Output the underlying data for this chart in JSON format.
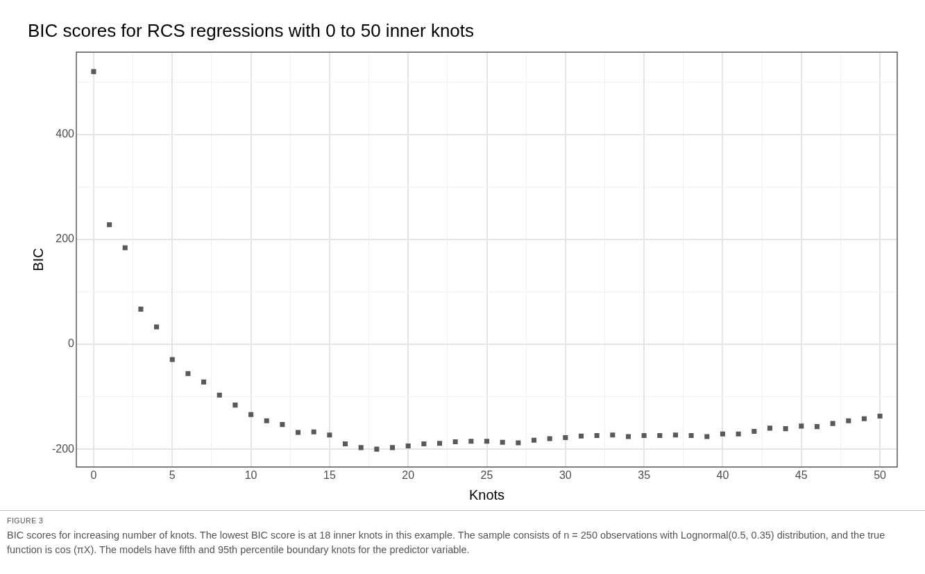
{
  "chart_data": {
    "type": "scatter",
    "title": "BIC scores for RCS regressions with 0 to 50 inner knots",
    "xlabel": "Knots",
    "ylabel": "BIC",
    "x": [
      0,
      1,
      2,
      3,
      4,
      5,
      6,
      7,
      8,
      9,
      10,
      11,
      12,
      13,
      14,
      15,
      16,
      17,
      18,
      19,
      20,
      21,
      22,
      23,
      24,
      25,
      26,
      27,
      28,
      29,
      30,
      31,
      32,
      33,
      34,
      35,
      36,
      37,
      38,
      39,
      40,
      41,
      42,
      43,
      44,
      45,
      46,
      47,
      48,
      49,
      50
    ],
    "series": [
      {
        "color": "#595959",
        "values": [
          520,
          228,
          184,
          67,
          33,
          -29,
          -56,
          -72,
          -97,
          -116,
          -134,
          -146,
          -153,
          -168,
          -167,
          -173,
          -190,
          -197,
          -200,
          -197,
          -194,
          -190,
          -189,
          -186,
          -185,
          -185,
          -187,
          -188,
          -183,
          -180,
          -178,
          -175,
          -174,
          -173,
          -176,
          -174,
          -174,
          -173,
          -174,
          -176,
          -171,
          -171,
          -166,
          -160,
          -161,
          -156,
          -157,
          -151,
          -146,
          -142,
          -137
        ]
      }
    ],
    "xlim": [
      -1.1,
      51.1
    ],
    "xticks": [
      0,
      {
        "value": 2.5,
        "label": null
      },
      5,
      {
        "value": 7.5,
        "label": null
      },
      10,
      {
        "value": 12.5,
        "label": null
      },
      15,
      {
        "value": 17.5,
        "label": null
      },
      20,
      {
        "value": 22.5,
        "label": null
      },
      25,
      {
        "value": 27.5,
        "label": null
      },
      30,
      {
        "value": 32.5,
        "label": null
      },
      35,
      {
        "value": 37.5,
        "label": null
      },
      40,
      {
        "value": 42.5,
        "label": null
      },
      45,
      {
        "value": 47.5,
        "label": null
      },
      50
    ],
    "ylim": [
      -234,
      557
    ],
    "yticks": [
      -200,
      {
        "value": -100,
        "label": null
      },
      0,
      {
        "value": 100,
        "label": null
      },
      200,
      {
        "value": 300,
        "label": null
      },
      400,
      {
        "value": 500,
        "label": null
      }
    ],
    "grid": true,
    "marker": "square",
    "annotations": [
      "FIGURE 3",
      "BIC scores for increasing number of knots. The lowest BIC score is at 18 inner knots in this example. The sample consists of n = 250 observations with Lognormal(0.5, 0.35) distribution, and the true function is cos (πX). The models have fifth and 95th percentile boundary knots for the predictor variable."
    ]
  }
}
